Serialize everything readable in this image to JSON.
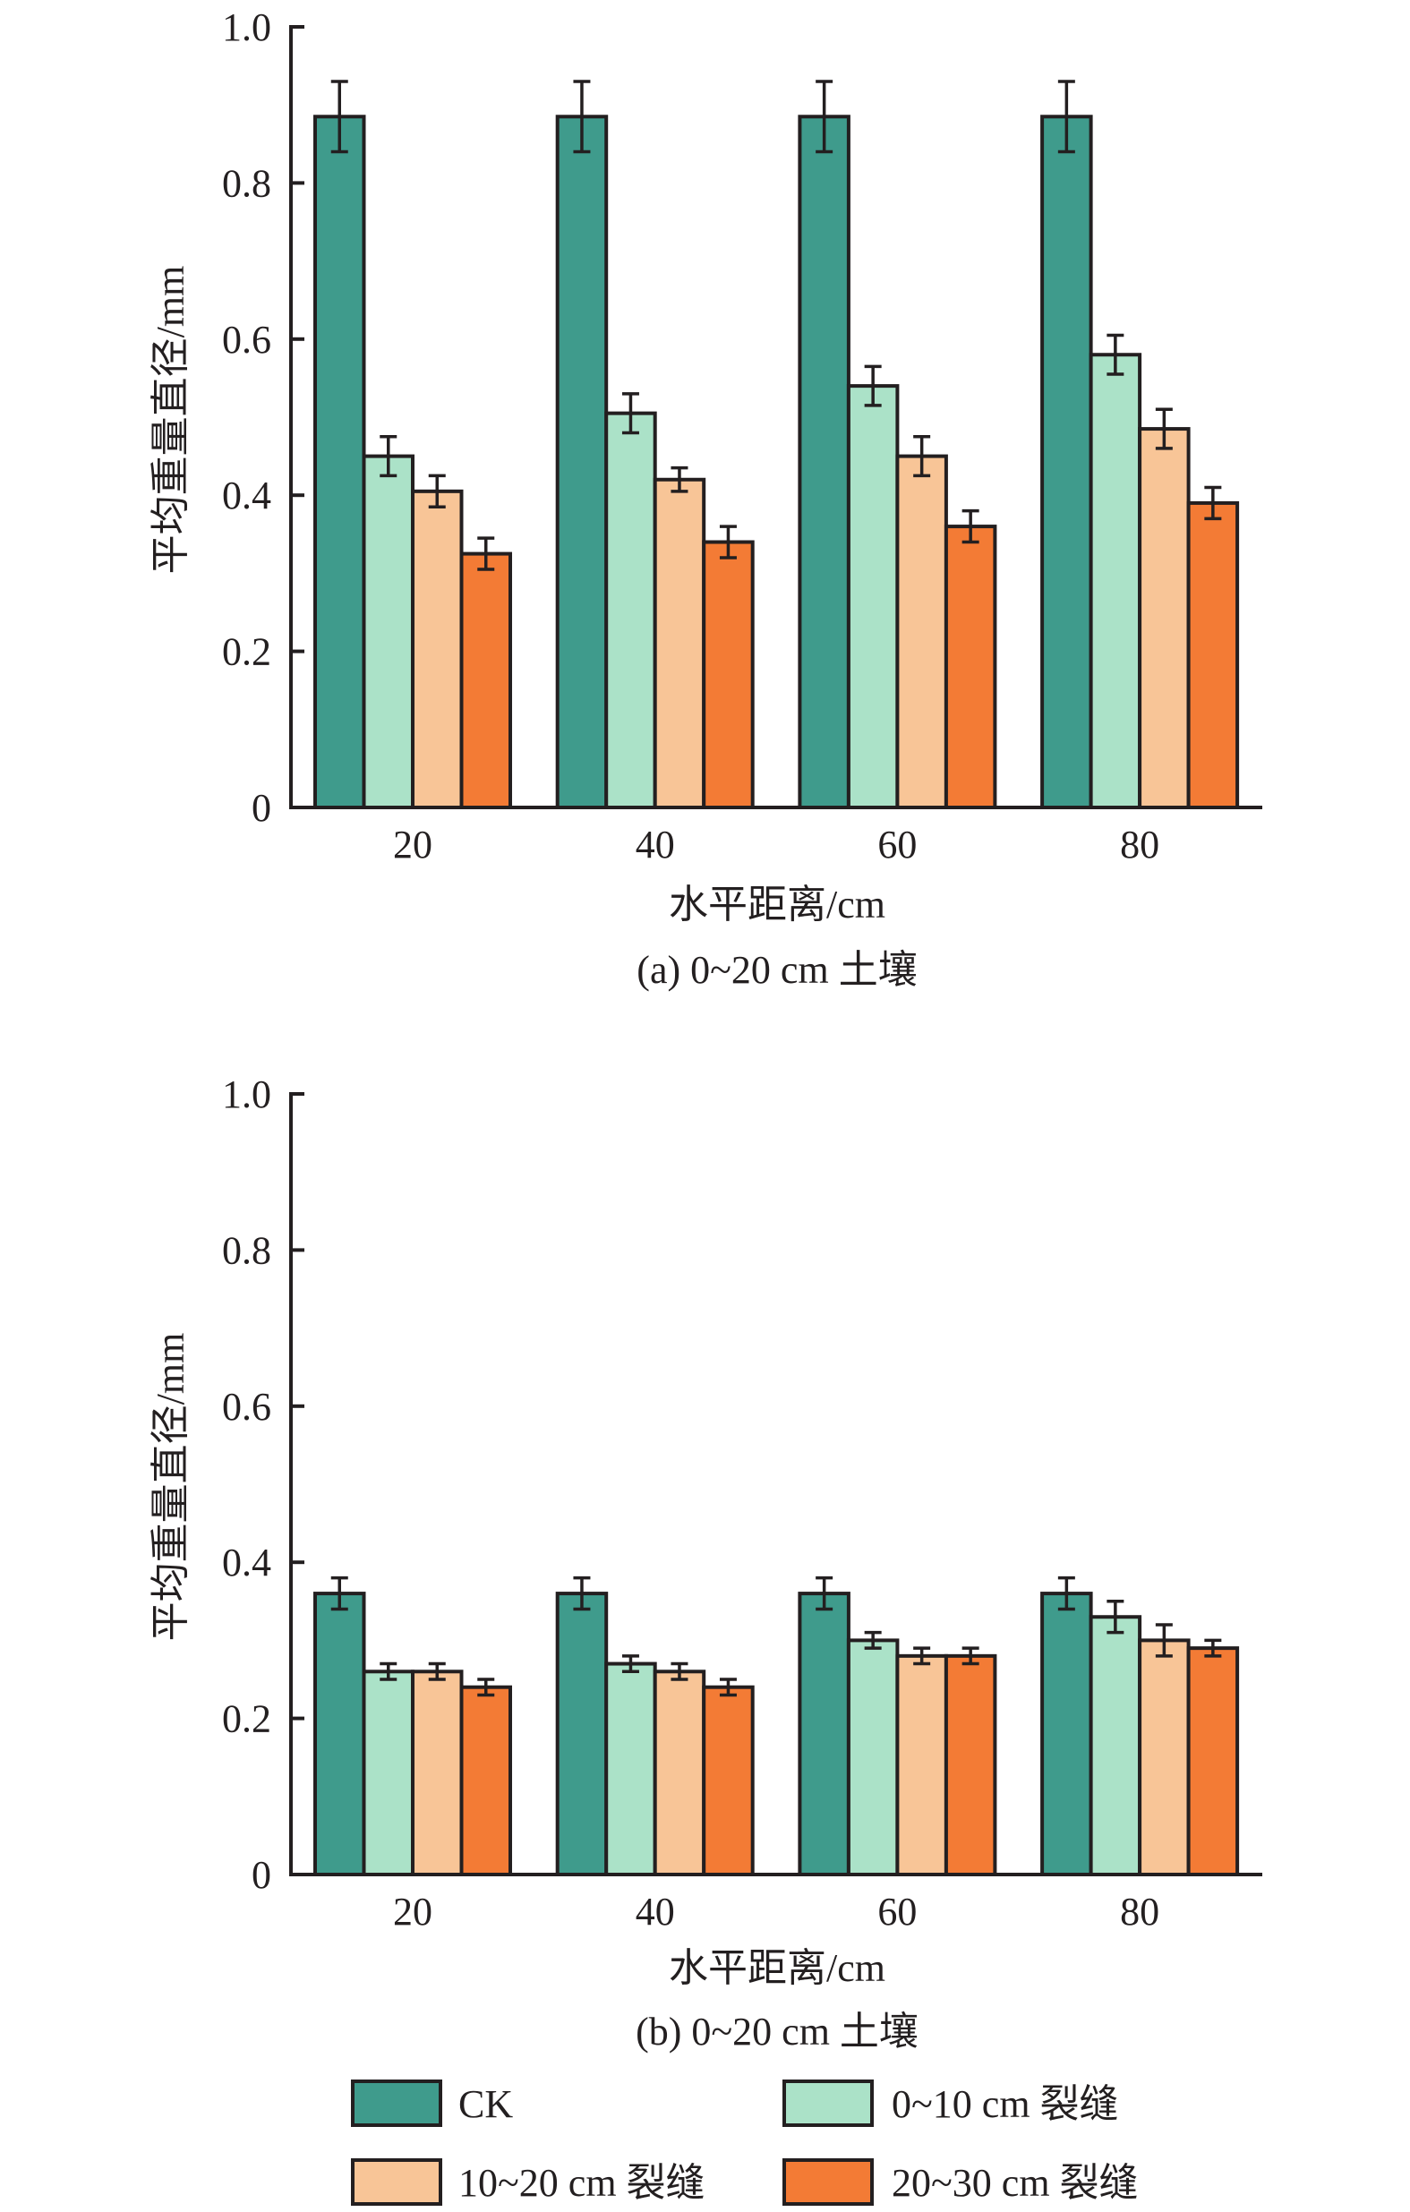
{
  "colors": {
    "outline": "#231F20",
    "CK": "#3F9B8C",
    "0~10 cm 裂缝": "#ABE2C8",
    "10~20 cm 裂缝": "#F8C597",
    "20~30 cm 裂缝": "#F37B35"
  },
  "legend": {
    "position": "bottom",
    "items": [
      {
        "label": "CK",
        "color": "#3F9B8C"
      },
      {
        "label": "0~10 cm 裂缝",
        "color": "#ABE2C8"
      },
      {
        "label": "10~20 cm 裂缝",
        "color": "#F8C597"
      },
      {
        "label": "20~30 cm 裂缝",
        "color": "#F37B35"
      }
    ]
  },
  "chart_data": [
    {
      "type": "bar",
      "title": "(a) 0~20 cm 土壤",
      "xlabel": "水平距离/cm",
      "ylabel": "平均重量直径/mm",
      "categories": [
        "20",
        "40",
        "60",
        "80"
      ],
      "ylim": [
        0,
        1.0
      ],
      "yticks": [
        0,
        0.2,
        0.4,
        0.6,
        0.8,
        1.0
      ],
      "ytick_labels": [
        "0",
        "0.2",
        "0.4",
        "0.6",
        "0.8",
        "1.0"
      ],
      "grid": false,
      "series": [
        {
          "name": "CK",
          "values": [
            0.885,
            0.885,
            0.885,
            0.885
          ],
          "errors": [
            0.045,
            0.045,
            0.045,
            0.045
          ]
        },
        {
          "name": "0~10 cm 裂缝",
          "values": [
            0.45,
            0.505,
            0.54,
            0.58
          ],
          "errors": [
            0.025,
            0.025,
            0.025,
            0.025
          ]
        },
        {
          "name": "10~20 cm 裂缝",
          "values": [
            0.405,
            0.42,
            0.45,
            0.485
          ],
          "errors": [
            0.02,
            0.015,
            0.025,
            0.025
          ]
        },
        {
          "name": "20~30 cm 裂缝",
          "values": [
            0.325,
            0.34,
            0.36,
            0.39
          ],
          "errors": [
            0.02,
            0.02,
            0.02,
            0.02
          ]
        }
      ]
    },
    {
      "type": "bar",
      "title": "(b) 0~20 cm 土壤",
      "xlabel": "水平距离/cm",
      "ylabel": "平均重量直径/mm",
      "categories": [
        "20",
        "40",
        "60",
        "80"
      ],
      "ylim": [
        0,
        1.0
      ],
      "yticks": [
        0,
        0.2,
        0.4,
        0.6,
        0.8,
        1.0
      ],
      "ytick_labels": [
        "0",
        "0.2",
        "0.4",
        "0.6",
        "0.8",
        "1.0"
      ],
      "grid": false,
      "series": [
        {
          "name": "CK",
          "values": [
            0.36,
            0.36,
            0.36,
            0.36
          ],
          "errors": [
            0.02,
            0.02,
            0.02,
            0.02
          ]
        },
        {
          "name": "0~10 cm 裂缝",
          "values": [
            0.26,
            0.27,
            0.3,
            0.33
          ],
          "errors": [
            0.01,
            0.01,
            0.01,
            0.02
          ]
        },
        {
          "name": "10~20 cm 裂缝",
          "values": [
            0.26,
            0.26,
            0.28,
            0.3
          ],
          "errors": [
            0.01,
            0.01,
            0.01,
            0.02
          ]
        },
        {
          "name": "20~30 cm 裂缝",
          "values": [
            0.24,
            0.24,
            0.28,
            0.29
          ],
          "errors": [
            0.01,
            0.01,
            0.01,
            0.01
          ]
        }
      ]
    }
  ]
}
